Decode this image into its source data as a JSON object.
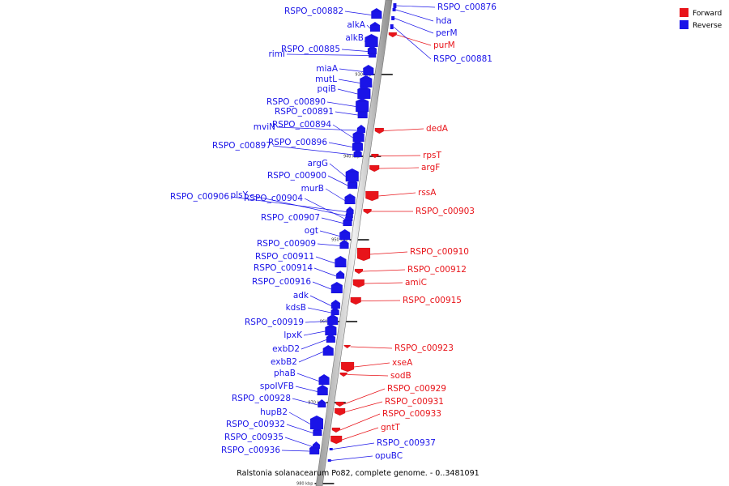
{
  "title": "Ralstonia solanacearum Po82, complete genome. - 0..3481091",
  "legend": [
    {
      "label": "Forward",
      "color": "#e8141a"
    },
    {
      "label": "Reverse",
      "color": "#1a14e8"
    }
  ],
  "ticks": [
    "930 kbp",
    "940 kbp",
    "950 kbp",
    "960 kbp",
    "970 kbp",
    "980 kbp"
  ],
  "reverse_genes": [
    "RSPO_c00882",
    "alkA",
    "alkB",
    "RSPO_c00885",
    "rimI",
    "miaA",
    "mutL",
    "pqiB",
    "RSPO_c00890",
    "RSPO_c00891",
    "mviN",
    "RSPO_c00894",
    "RSPO_c00896",
    "RSPO_c00897",
    "argG",
    "RSPO_c00900",
    "murB",
    "RSPO_c00906",
    "plsY",
    "RSPO_c00904",
    "RSPO_c00907",
    "ogt",
    "RSPO_c00909",
    "RSPO_c00911",
    "RSPO_c00914",
    "RSPO_c00916",
    "adk",
    "kdsB",
    "RSPO_c00919",
    "lpxK",
    "exbD2",
    "exbB2",
    "phaB",
    "spoIVFB",
    "RSPO_c00928",
    "hupB2",
    "RSPO_c00932",
    "RSPO_c00935",
    "RSPO_c00936"
  ],
  "forward_genes": [
    "purM",
    "dedA",
    "rpsT",
    "argF",
    "rssA",
    "RSPO_c00903",
    "RSPO_c00910",
    "RSPO_c00912",
    "amiC",
    "RSPO_c00915",
    "RSPO_c00923",
    "xseA",
    "sodB",
    "RSPO_c00929",
    "RSPO_c00931",
    "RSPO_c00933",
    "gntT"
  ],
  "reverse_right_genes": [
    "RSPO_c00876",
    "hda",
    "perM",
    "RSPO_c00881",
    "RSPO_c00937",
    "opuBC"
  ]
}
